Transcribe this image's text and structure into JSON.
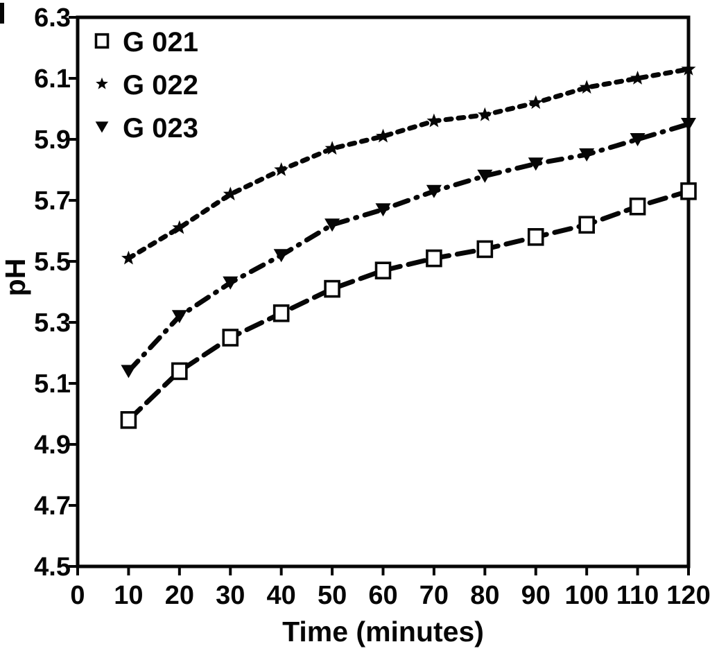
{
  "chart_data": {
    "type": "line",
    "title": "",
    "xlabel": "Time (minutes)",
    "ylabel": "pH",
    "xlim": [
      0,
      120
    ],
    "ylim": [
      4.5,
      6.3
    ],
    "x_ticks": [
      0,
      10,
      20,
      30,
      40,
      50,
      60,
      70,
      80,
      90,
      100,
      110,
      120
    ],
    "y_ticks": [
      4.5,
      4.7,
      4.9,
      5.1,
      5.3,
      5.5,
      5.7,
      5.9,
      6.1,
      6.3
    ],
    "grid": false,
    "legend_position": "top-left",
    "color": "#060606",
    "background": "#ffffff",
    "x": [
      10,
      20,
      30,
      40,
      50,
      60,
      70,
      80,
      90,
      100,
      110,
      120
    ],
    "series": [
      {
        "name": "G 021",
        "marker": "open-square",
        "dash": "long-dash",
        "values": [
          4.98,
          5.14,
          5.25,
          5.33,
          5.41,
          5.47,
          5.51,
          5.54,
          5.58,
          5.62,
          5.68,
          5.73
        ]
      },
      {
        "name": "G 022",
        "marker": "star",
        "dash": "dot",
        "values": [
          5.51,
          5.61,
          5.72,
          5.8,
          5.87,
          5.91,
          5.96,
          5.98,
          6.02,
          6.07,
          6.1,
          6.13
        ]
      },
      {
        "name": "G 023",
        "marker": "filled-triangle-down",
        "dash": "dash-dot",
        "values": [
          5.14,
          5.32,
          5.43,
          5.52,
          5.62,
          5.67,
          5.73,
          5.78,
          5.82,
          5.85,
          5.9,
          5.95
        ]
      }
    ]
  }
}
